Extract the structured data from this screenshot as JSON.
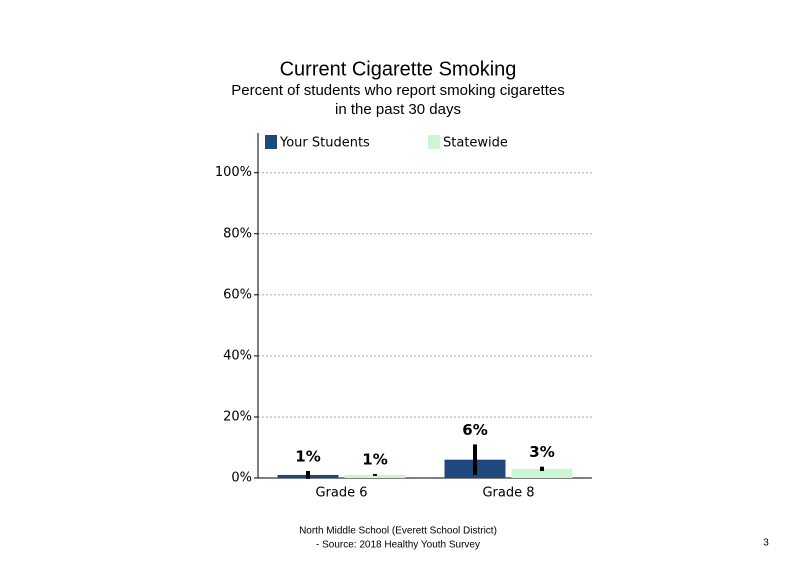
{
  "chart_data": {
    "type": "bar",
    "title": "Current Cigarette Smoking",
    "subtitle": [
      "Percent of students who report smoking cigarettes",
      "in the past 30 days"
    ],
    "categories": [
      "Grade 6",
      "Grade 8"
    ],
    "series": [
      {
        "name": "Your Students",
        "color": "#1f497d",
        "values": [
          1,
          6
        ],
        "value_labels": [
          "1%",
          "6%"
        ],
        "errors": [
          1.3,
          5
        ]
      },
      {
        "name": "Statewide",
        "color": "#ccf5d5",
        "values": [
          1,
          3
        ],
        "value_labels": [
          "1%",
          "3%"
        ],
        "errors": [
          0.3,
          0.7
        ]
      }
    ],
    "ylim": [
      0,
      113
    ],
    "yticks": [
      {
        "value": 0,
        "label": "0%"
      },
      {
        "value": 20,
        "label": "20%"
      },
      {
        "value": 40,
        "label": "40%"
      },
      {
        "value": 60,
        "label": "60%"
      },
      {
        "value": 80,
        "label": "80%"
      },
      {
        "value": 100,
        "label": "100%"
      }
    ],
    "grid": true,
    "legend": "top"
  },
  "footer": {
    "lines": [
      "North Middle School (Everett School District)",
      "- Source: 2018 Healthy Youth Survey"
    ],
    "page": "3"
  }
}
